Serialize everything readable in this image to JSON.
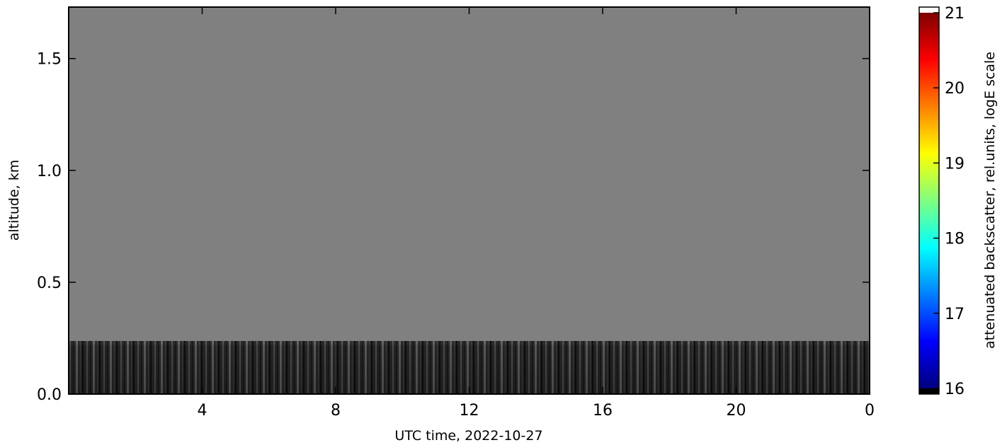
{
  "chart_data": {
    "type": "heatmap",
    "x_label": "UTC time,  2022-10-27",
    "y_label": "altitude, km",
    "xlim": [
      0,
      24
    ],
    "xticks": [
      4,
      8,
      12,
      16,
      20,
      {
        "value": 24,
        "label": "0"
      }
    ],
    "ylim": [
      0,
      1.73
    ],
    "yticks": [
      {
        "value": 0,
        "label": "0.0"
      },
      0.5,
      {
        "value": 1,
        "label": "1.0"
      },
      1.5
    ],
    "colorbar": {
      "label": "attenuated backscatter, rel.units, logE scale",
      "lim": [
        16,
        21
      ],
      "ticks": [
        16,
        17,
        18,
        19,
        20,
        21
      ],
      "colormap": [
        "#00007f",
        "#0000ff",
        "#007fff",
        "#00ffff",
        "#7fff7f",
        "#ffff00",
        "#ff7f00",
        "#ff0000",
        "#7f0000"
      ]
    }
  }
}
